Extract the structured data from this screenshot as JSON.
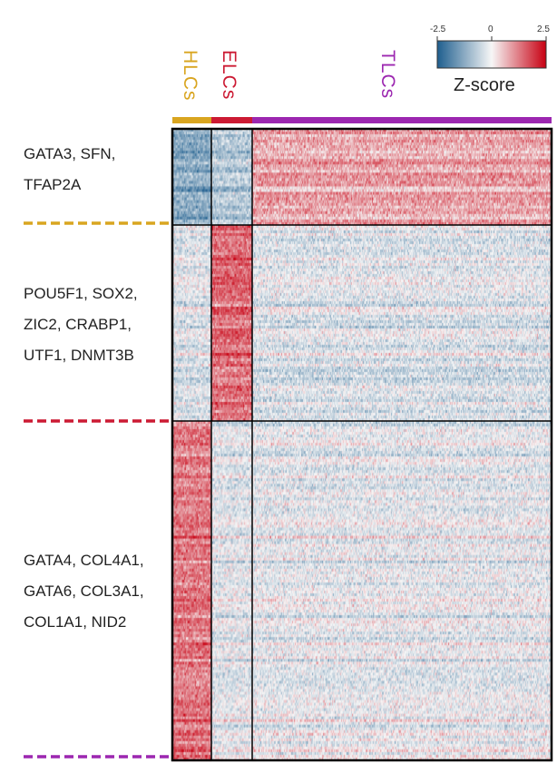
{
  "chart_data": {
    "type": "heatmap",
    "title": "",
    "columns": [
      {
        "name": "HLCs",
        "color": "#d9a520",
        "n_cells": 40
      },
      {
        "name": "ELCs",
        "color": "#cc1a33",
        "n_cells": 44
      },
      {
        "name": "TLCs",
        "color": "#9c27b0",
        "n_cells": 330
      }
    ],
    "row_blocks": [
      {
        "genes": "GATA3, SFN,\nTFAP2A",
        "n_genes": 35,
        "color": "#d9a520",
        "mean_z": {
          "HLCs": -1.2,
          "ELCs": -0.7,
          "TLCs": 0.9
        }
      },
      {
        "genes": "POU5F1, SOX2,\nZIC2, CRABP1,\nUTF1, DNMT3B",
        "n_genes": 72,
        "color": "#cc1a33",
        "mean_z": {
          "HLCs": -0.3,
          "ELCs": 1.4,
          "TLCs": -0.3
        }
      },
      {
        "genes": "GATA4, COL4A1,\nGATA6, COL3A1,\nCOL1A1, NID2",
        "n_genes": 124,
        "color": "#9c27b0",
        "mean_z": {
          "HLCs": 1.3,
          "ELCs": -0.2,
          "TLCs": -0.15
        }
      }
    ],
    "colorscale": {
      "title": "Z-score",
      "min": -2.5,
      "mid": 0,
      "max": 2.5,
      "ticks": [
        "-2.5",
        "0",
        "2.5"
      ],
      "low_color": "#1f5f8f",
      "mid_color": "#f7f7f7",
      "high_color": "#c80012"
    }
  }
}
